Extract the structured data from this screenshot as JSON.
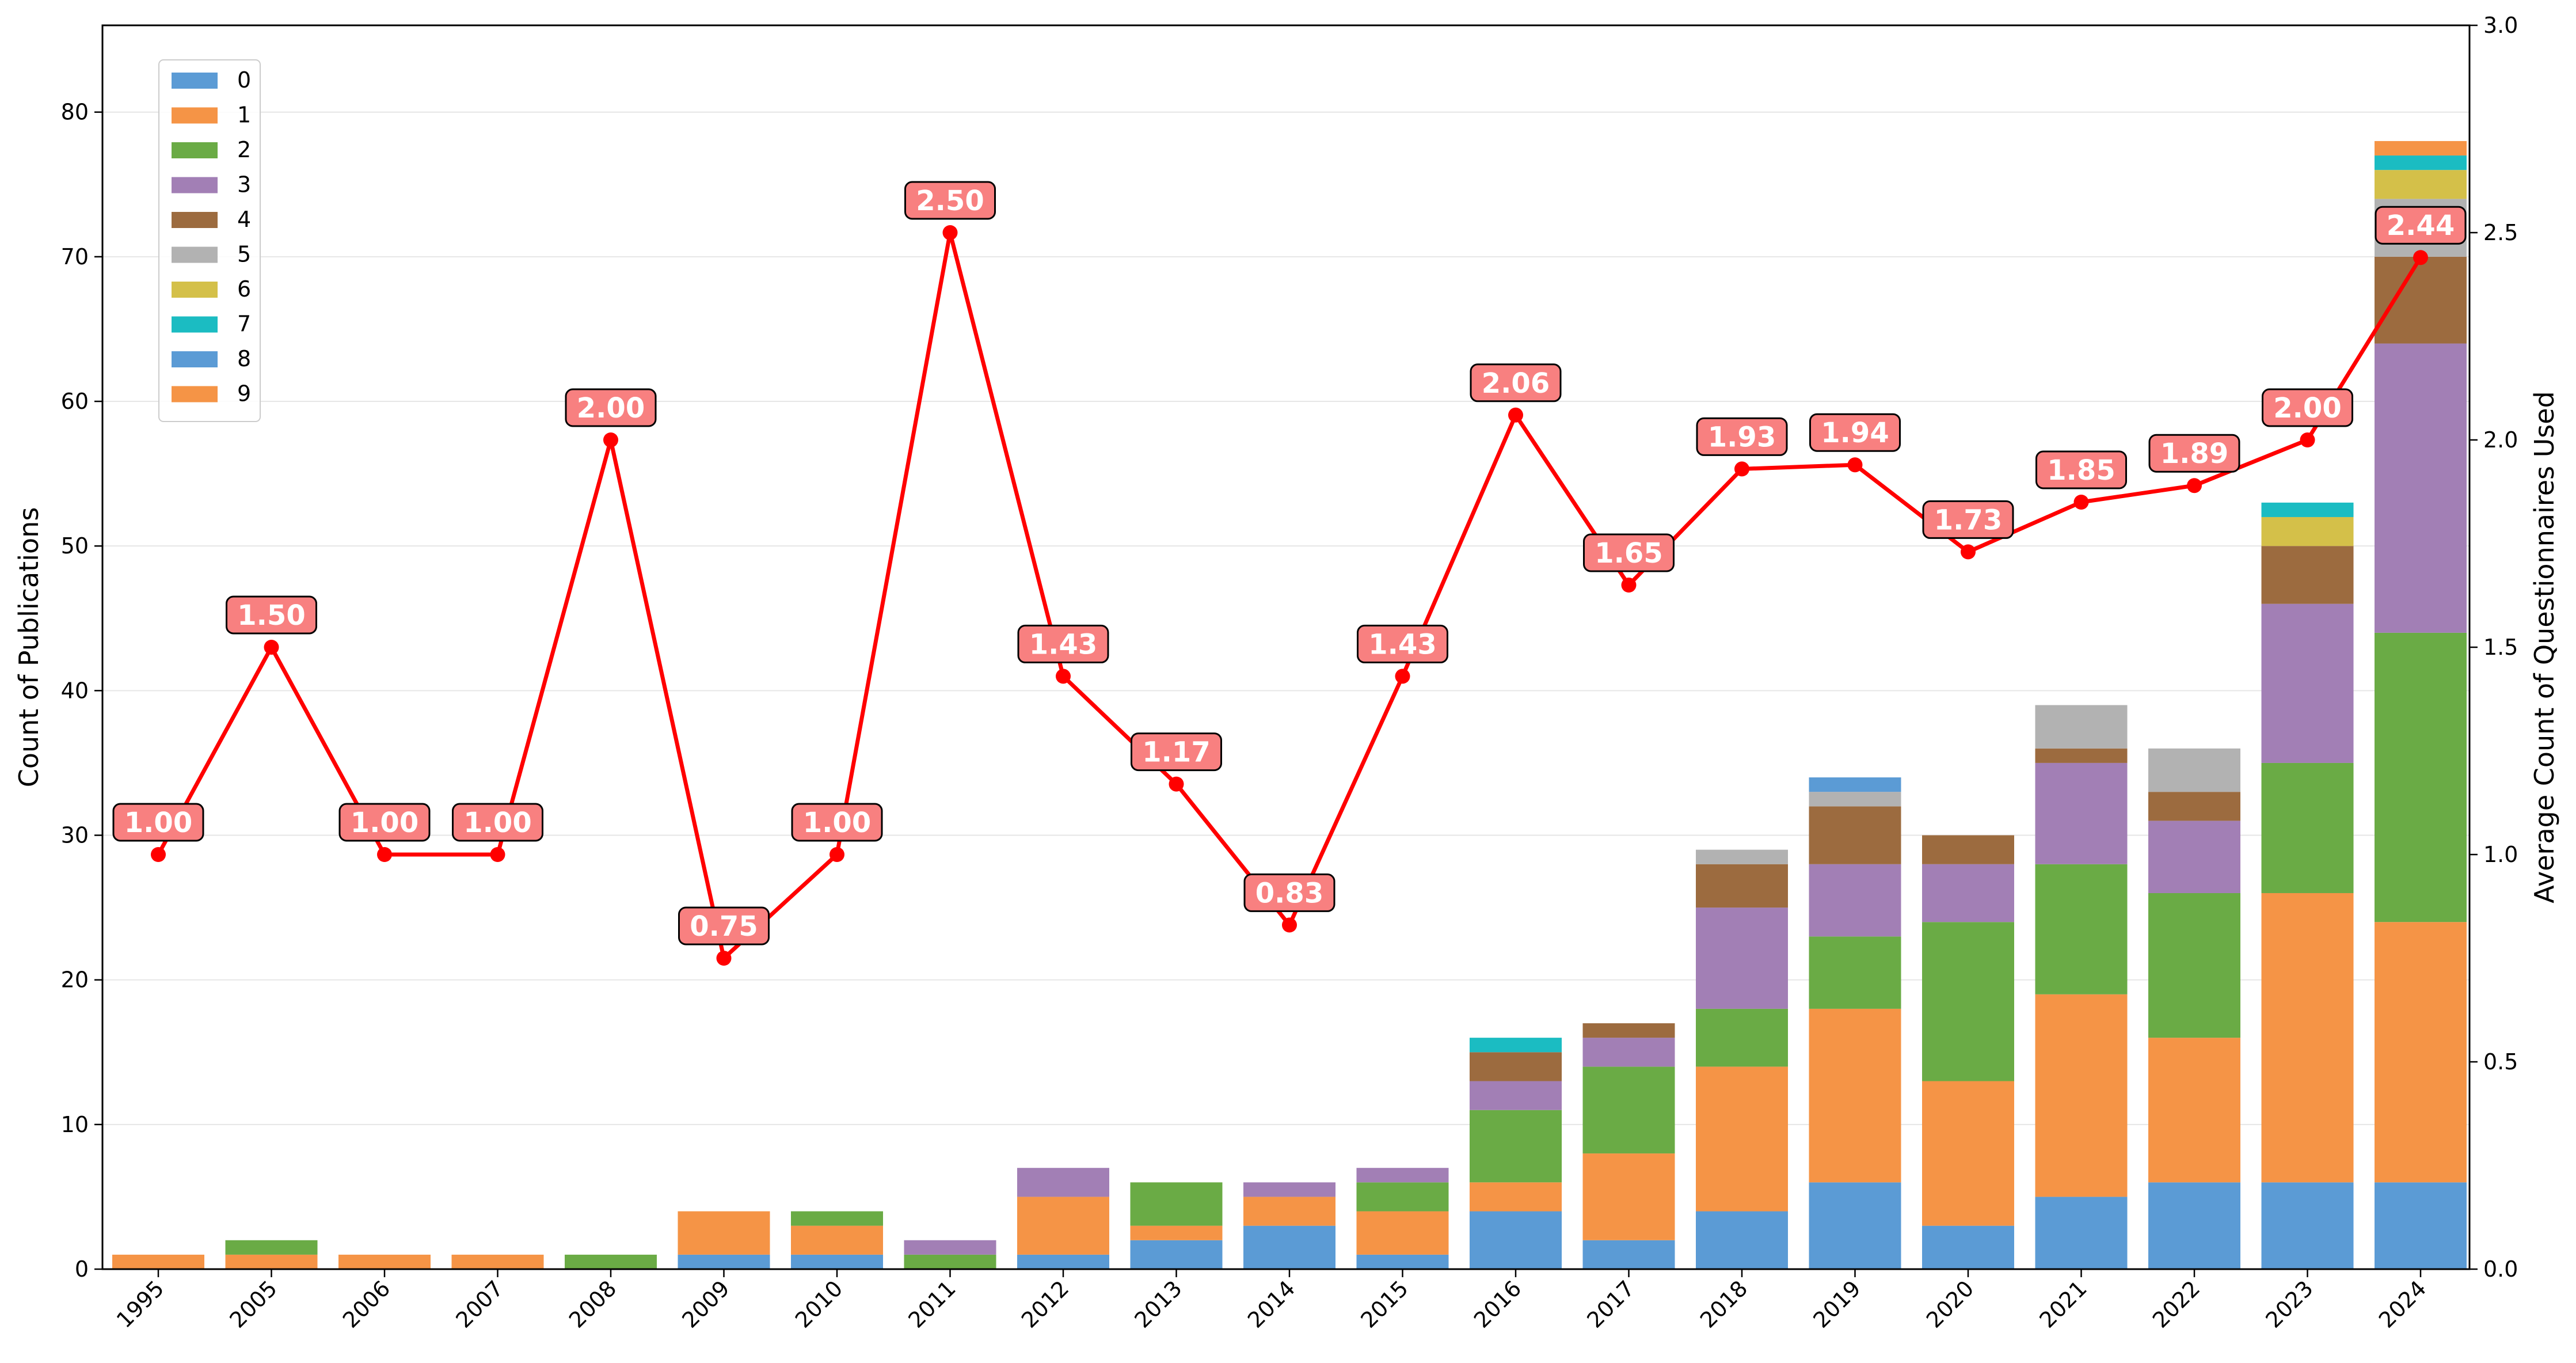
{
  "chart_data": {
    "type": "bar",
    "stacked": true,
    "title": "",
    "xlabel": "",
    "ylabel": "Count of Publications",
    "y2label": "Average Count of Questionnaires Used",
    "ylim": [
      0,
      86
    ],
    "y2lim": [
      0,
      3.0
    ],
    "yticks": [
      "0",
      "10",
      "20",
      "30",
      "40",
      "50",
      "60",
      "70",
      "80"
    ],
    "y2ticks": [
      "0.0",
      "0.5",
      "1.0",
      "1.5",
      "2.0",
      "2.5",
      "3.0"
    ],
    "grid": "horizontal",
    "legend_position": "top-left",
    "categories": [
      "1995",
      "2005",
      "2006",
      "2007",
      "2008",
      "2009",
      "2010",
      "2011",
      "2012",
      "2013",
      "2014",
      "2015",
      "2016",
      "2017",
      "2018",
      "2019",
      "2020",
      "2021",
      "2022",
      "2023",
      "2024"
    ],
    "series": [
      {
        "name": "0",
        "color": "#5b9bd5",
        "values": [
          0,
          0,
          0,
          0,
          0,
          1,
          1,
          0,
          1,
          2,
          3,
          1,
          4,
          2,
          4,
          6,
          3,
          5,
          6,
          6,
          6
        ]
      },
      {
        "name": "1",
        "color": "#f59446",
        "values": [
          1,
          1,
          1,
          1,
          0,
          3,
          2,
          0,
          4,
          1,
          2,
          3,
          2,
          6,
          10,
          12,
          10,
          14,
          10,
          20,
          18
        ]
      },
      {
        "name": "2",
        "color": "#6aab45",
        "values": [
          0,
          1,
          0,
          0,
          1,
          0,
          1,
          1,
          0,
          3,
          0,
          2,
          5,
          6,
          4,
          5,
          11,
          9,
          10,
          9,
          20
        ]
      },
      {
        "name": "3",
        "color": "#a27fb5",
        "values": [
          0,
          0,
          0,
          0,
          0,
          0,
          0,
          1,
          2,
          0,
          1,
          1,
          2,
          2,
          7,
          5,
          4,
          7,
          5,
          11,
          20
        ]
      },
      {
        "name": "4",
        "color": "#9c6b3f",
        "values": [
          0,
          0,
          0,
          0,
          0,
          0,
          0,
          0,
          0,
          0,
          0,
          0,
          2,
          1,
          3,
          4,
          2,
          1,
          2,
          4,
          6
        ]
      },
      {
        "name": "5",
        "color": "#b2b2b2",
        "values": [
          0,
          0,
          0,
          0,
          0,
          0,
          0,
          0,
          0,
          0,
          0,
          0,
          0,
          0,
          1,
          1,
          0,
          3,
          3,
          0,
          4
        ]
      },
      {
        "name": "6",
        "color": "#d4c049",
        "values": [
          0,
          0,
          0,
          0,
          0,
          0,
          0,
          0,
          0,
          0,
          0,
          0,
          0,
          0,
          0,
          0,
          0,
          0,
          0,
          2,
          2
        ]
      },
      {
        "name": "7",
        "color": "#1bbcc2",
        "values": [
          0,
          0,
          0,
          0,
          0,
          0,
          0,
          0,
          0,
          0,
          0,
          0,
          1,
          0,
          0,
          0,
          0,
          0,
          0,
          1,
          1
        ]
      },
      {
        "name": "8",
        "color": "#5b9bd5",
        "values": [
          0,
          0,
          0,
          0,
          0,
          0,
          0,
          0,
          0,
          0,
          0,
          0,
          0,
          0,
          0,
          1,
          0,
          0,
          0,
          0,
          0
        ]
      },
      {
        "name": "9",
        "color": "#f59446",
        "values": [
          0,
          0,
          0,
          0,
          0,
          0,
          0,
          0,
          0,
          0,
          0,
          0,
          0,
          0,
          0,
          0,
          0,
          0,
          0,
          0,
          1
        ]
      }
    ],
    "line": {
      "name": "Average Count of Questionnaires Used",
      "axis": "y2",
      "color": "#ff0000",
      "values": [
        1.0,
        1.5,
        1.0,
        1.0,
        2.0,
        0.75,
        1.0,
        2.5,
        1.43,
        1.17,
        0.83,
        1.43,
        2.06,
        1.65,
        1.93,
        1.94,
        1.73,
        1.85,
        1.89,
        2.0,
        2.44
      ],
      "labels": [
        "1.00",
        "1.50",
        "1.00",
        "1.00",
        "2.00",
        "0.75",
        "1.00",
        "2.50",
        "1.43",
        "1.17",
        "0.83",
        "1.43",
        "2.06",
        "1.65",
        "1.93",
        "1.94",
        "1.73",
        "1.85",
        "1.89",
        "2.00",
        "2.44"
      ]
    }
  }
}
